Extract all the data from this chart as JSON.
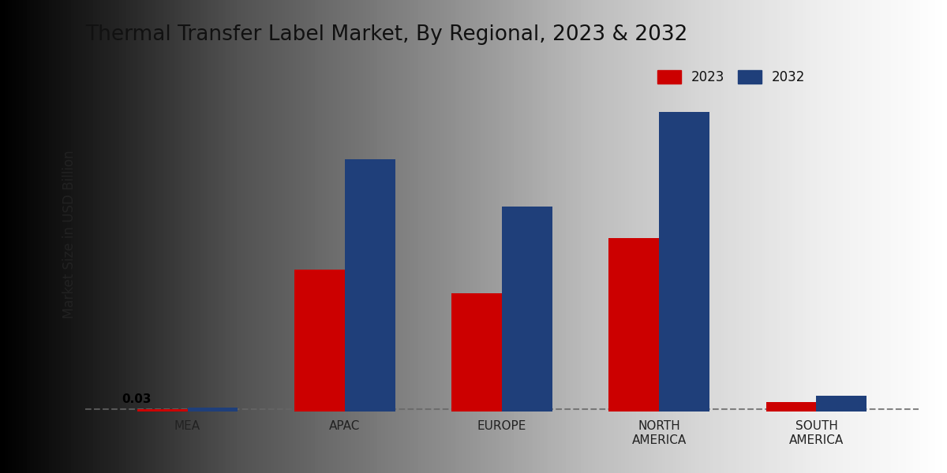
{
  "title": "Thermal Transfer Label Market, By Regional, 2023 & 2032",
  "ylabel": "Market Size in USD Billion",
  "categories": [
    "MEA",
    "APAC",
    "EUROPE",
    "NORTH\nAMERICA",
    "SOUTH\nAMERICA"
  ],
  "values_2023": [
    0.03,
    1.8,
    1.5,
    2.2,
    0.12
  ],
  "values_2032": [
    0.05,
    3.2,
    2.6,
    3.8,
    0.2
  ],
  "color_2023": "#cc0000",
  "color_2032": "#1f3f7a",
  "dashed_line_y": 0.03,
  "annotation_text": "0.03",
  "bar_width": 0.32,
  "ylim": [
    0,
    4.5
  ],
  "legend_labels": [
    "2023",
    "2032"
  ],
  "title_fontsize": 19,
  "axis_label_fontsize": 12,
  "tick_fontsize": 11,
  "bg_left": "#c0c0c0",
  "bg_right": "#f0f0f0"
}
